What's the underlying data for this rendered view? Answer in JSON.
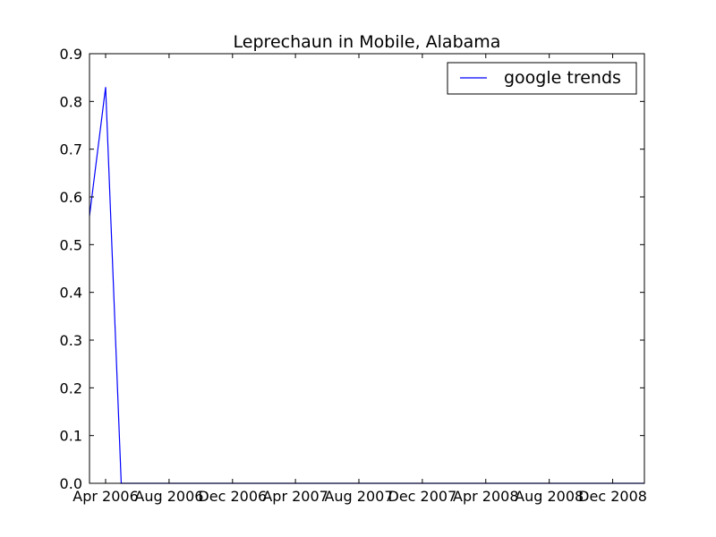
{
  "chart_data": {
    "type": "line",
    "title": "Leprechaun in Mobile, Alabama",
    "xlabel": "",
    "ylabel": "",
    "x_ticks": [
      "Apr 2006",
      "Aug 2006",
      "Dec 2006",
      "Apr 2007",
      "Aug 2007",
      "Dec 2007",
      "Apr 2008",
      "Aug 2008",
      "Dec 2008"
    ],
    "y_ticks": [
      "0.0",
      "0.1",
      "0.2",
      "0.3",
      "0.4",
      "0.5",
      "0.6",
      "0.7",
      "0.8",
      "0.9"
    ],
    "xlim": [
      "2006-03-01",
      "2009-01-31"
    ],
    "ylim": [
      0,
      0.9
    ],
    "grid": false,
    "legend_position": "top-right",
    "series": [
      {
        "name": "google trends",
        "color": "#0000ff",
        "points": [
          {
            "x": "2006-03-01",
            "y": 0.56
          },
          {
            "x": "2006-04-01",
            "y": 0.83
          },
          {
            "x": "2006-05-01",
            "y": 0.0
          },
          {
            "x": "2006-06-01",
            "y": 0.0
          },
          {
            "x": "2006-07-01",
            "y": 0.0
          },
          {
            "x": "2006-08-01",
            "y": 0.0
          },
          {
            "x": "2006-09-01",
            "y": 0.0
          },
          {
            "x": "2006-10-01",
            "y": 0.0
          },
          {
            "x": "2006-11-01",
            "y": 0.0
          },
          {
            "x": "2006-12-01",
            "y": 0.0
          },
          {
            "x": "2007-01-01",
            "y": 0.0
          },
          {
            "x": "2007-02-01",
            "y": 0.0
          },
          {
            "x": "2007-03-01",
            "y": 0.0
          },
          {
            "x": "2007-04-01",
            "y": 0.0
          },
          {
            "x": "2007-05-01",
            "y": 0.0
          },
          {
            "x": "2007-06-01",
            "y": 0.0
          },
          {
            "x": "2007-07-01",
            "y": 0.0
          },
          {
            "x": "2007-08-01",
            "y": 0.0
          },
          {
            "x": "2007-09-01",
            "y": 0.0
          },
          {
            "x": "2007-10-01",
            "y": 0.0
          },
          {
            "x": "2007-11-01",
            "y": 0.0
          },
          {
            "x": "2007-12-01",
            "y": 0.0
          },
          {
            "x": "2008-01-01",
            "y": 0.0
          },
          {
            "x": "2008-02-01",
            "y": 0.0
          },
          {
            "x": "2008-03-01",
            "y": 0.0
          },
          {
            "x": "2008-04-01",
            "y": 0.0
          },
          {
            "x": "2008-05-01",
            "y": 0.0
          },
          {
            "x": "2008-06-01",
            "y": 0.0
          },
          {
            "x": "2008-07-01",
            "y": 0.0
          },
          {
            "x": "2008-08-01",
            "y": 0.0
          },
          {
            "x": "2008-09-01",
            "y": 0.0
          },
          {
            "x": "2008-10-01",
            "y": 0.0
          },
          {
            "x": "2008-11-01",
            "y": 0.0
          },
          {
            "x": "2008-12-01",
            "y": 0.0
          },
          {
            "x": "2009-01-01",
            "y": 0.0
          },
          {
            "x": "2009-01-31",
            "y": 0.0
          }
        ]
      }
    ]
  }
}
